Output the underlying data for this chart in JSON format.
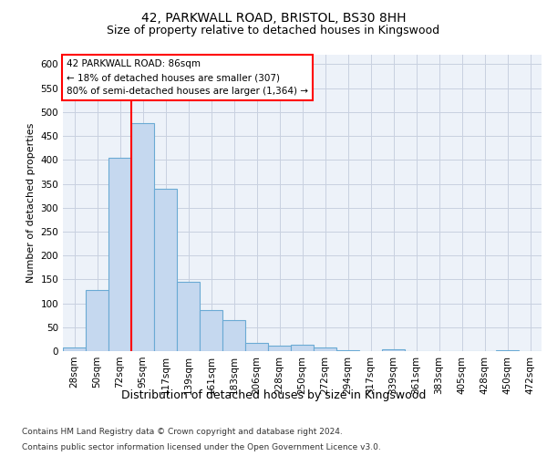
{
  "title1": "42, PARKWALL ROAD, BRISTOL, BS30 8HH",
  "title2": "Size of property relative to detached houses in Kingswood",
  "xlabel": "Distribution of detached houses by size in Kingswood",
  "ylabel": "Number of detached properties",
  "footer1": "Contains HM Land Registry data © Crown copyright and database right 2024.",
  "footer2": "Contains public sector information licensed under the Open Government Licence v3.0.",
  "bin_labels": [
    "28sqm",
    "50sqm",
    "72sqm",
    "95sqm",
    "117sqm",
    "139sqm",
    "161sqm",
    "183sqm",
    "206sqm",
    "228sqm",
    "250sqm",
    "272sqm",
    "294sqm",
    "317sqm",
    "339sqm",
    "361sqm",
    "383sqm",
    "405sqm",
    "428sqm",
    "450sqm",
    "472sqm"
  ],
  "bar_values": [
    8,
    128,
    405,
    477,
    340,
    145,
    85,
    65,
    17,
    12,
    13,
    7,
    2,
    0,
    3,
    0,
    0,
    0,
    0,
    2,
    0
  ],
  "bar_color": "#c5d8ef",
  "bar_edge_color": "#6aaad4",
  "grid_color": "#c8d0e0",
  "red_line_x": 2.5,
  "annotation_line1": "42 PARKWALL ROAD: 86sqm",
  "annotation_line2": "← 18% of detached houses are smaller (307)",
  "annotation_line3": "80% of semi-detached houses are larger (1,364) →",
  "ylim": [
    0,
    620
  ],
  "yticks": [
    0,
    50,
    100,
    150,
    200,
    250,
    300,
    350,
    400,
    450,
    500,
    550,
    600
  ],
  "plot_bg_color": "#edf2f9",
  "fig_bg_color": "#ffffff",
  "title1_fontsize": 10,
  "title2_fontsize": 9,
  "ylabel_fontsize": 8,
  "xlabel_fontsize": 9,
  "tick_fontsize": 7.5,
  "footer_fontsize": 6.5
}
